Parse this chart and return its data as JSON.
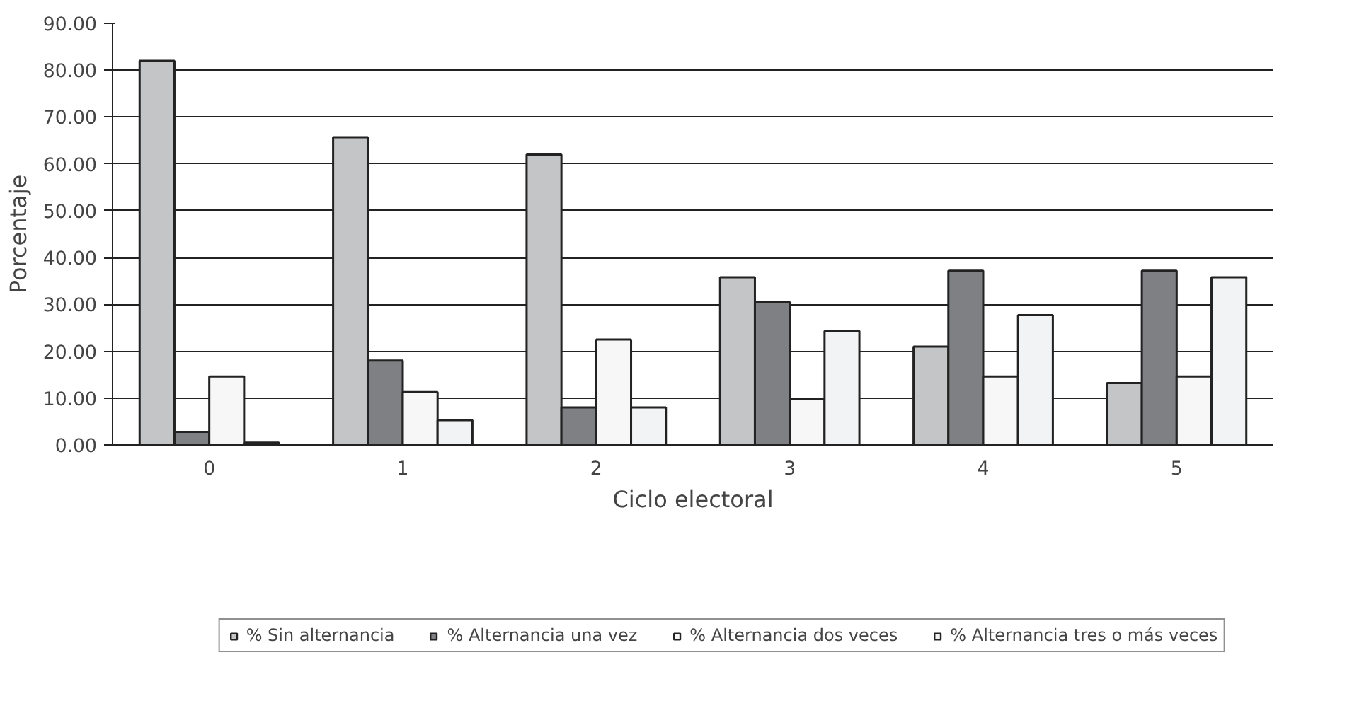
{
  "chart_data": {
    "type": "bar",
    "xlabel": "Ciclo electoral",
    "ylabel": "Porcentaje",
    "categories": [
      "0",
      "1",
      "2",
      "3",
      "4",
      "5"
    ],
    "series": [
      {
        "name": "% Sin alternancia",
        "color": "#c4c5c7",
        "values": [
          82.0,
          65.7,
          62.0,
          35.8,
          21.0,
          13.2
        ]
      },
      {
        "name": "% Alternancia una vez",
        "color": "#7f8083",
        "values": [
          2.8,
          18.0,
          8.0,
          30.5,
          37.2,
          37.2
        ]
      },
      {
        "name": "% Alternancia dos veces",
        "color": "#f7f7f7",
        "values": [
          14.6,
          11.3,
          22.5,
          9.8,
          14.6,
          14.6
        ]
      },
      {
        "name": "% Alternancia tres o más veces",
        "color": "#f2f3f4",
        "values": [
          0.5,
          5.3,
          8.0,
          24.3,
          27.7,
          35.8
        ]
      }
    ],
    "ylim": [
      0,
      90
    ],
    "yticks": [
      {
        "value": 0,
        "label": "0.00"
      },
      {
        "value": 10,
        "label": "10.00"
      },
      {
        "value": 20,
        "label": "20.00"
      },
      {
        "value": 30,
        "label": "30.00"
      },
      {
        "value": 40,
        "label": "40.00"
      },
      {
        "value": 50,
        "label": "50.00"
      },
      {
        "value": 60,
        "label": "60.00"
      },
      {
        "value": 70,
        "label": "70.00"
      },
      {
        "value": 80,
        "label": "80.00"
      },
      {
        "value": 90,
        "label": "90.00"
      }
    ],
    "grid": "y",
    "legend": "bottom"
  }
}
